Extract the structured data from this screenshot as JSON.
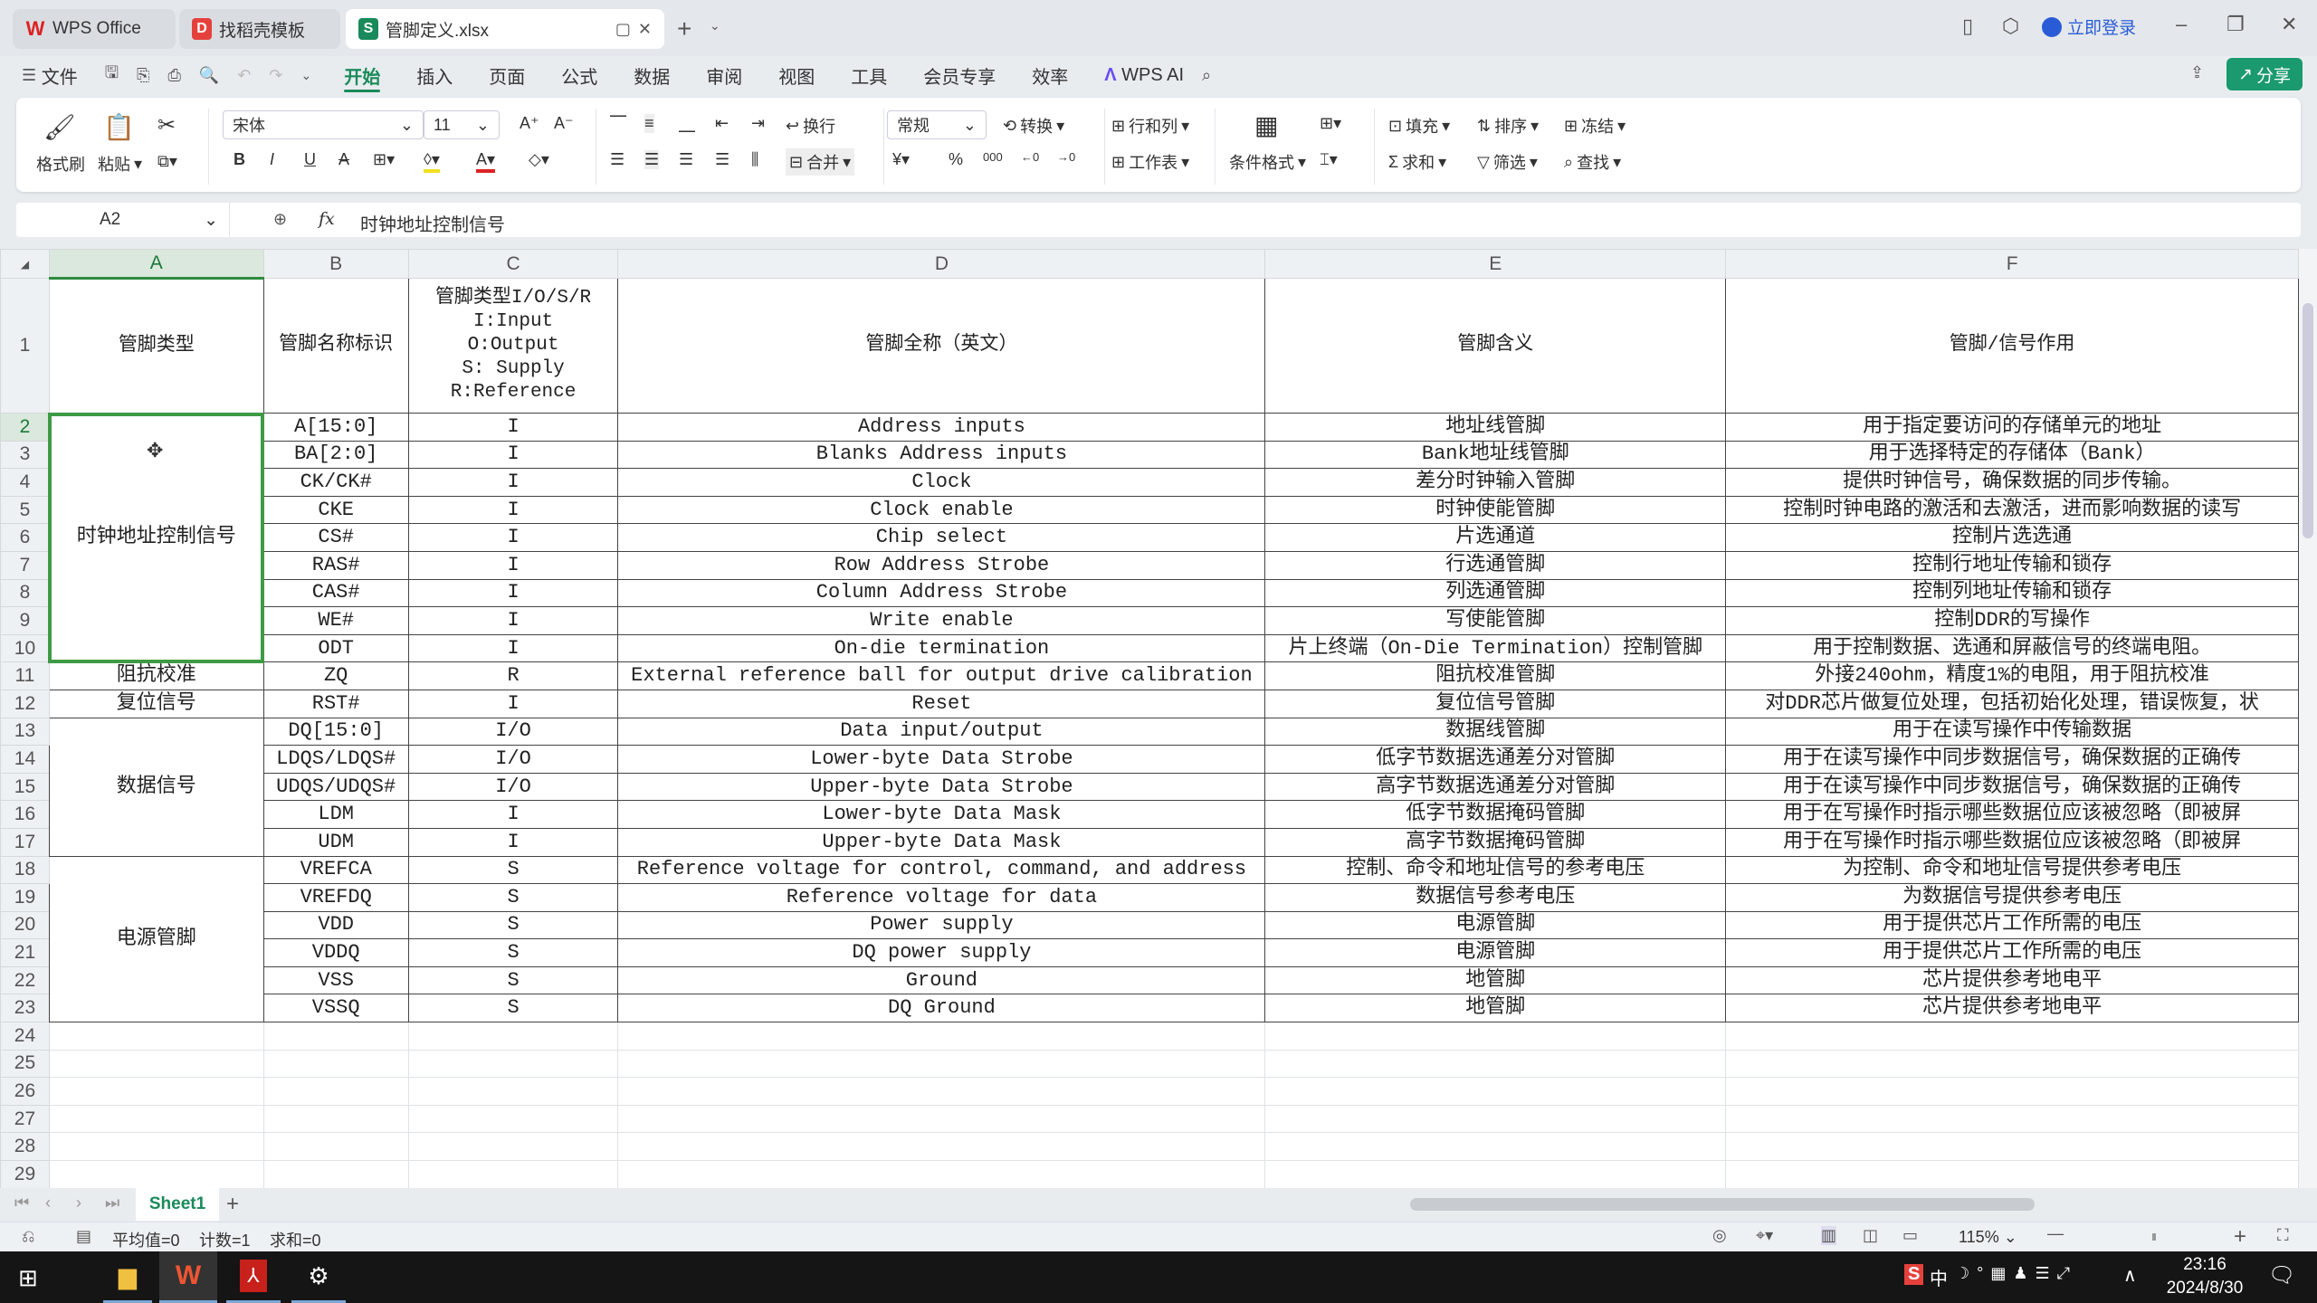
{
  "window": {
    "tabs": [
      {
        "label": "WPS Office",
        "icon": "wps-logo-icon"
      },
      {
        "label": "找稻壳模板",
        "icon": "docer-icon"
      },
      {
        "label": "管脚定义.xlsx",
        "icon": "spreadsheet-icon"
      }
    ],
    "login_label": "立即登录",
    "share_label": "分享"
  },
  "menu": {
    "file_label": "文件",
    "items": [
      "开始",
      "插入",
      "页面",
      "公式",
      "数据",
      "审阅",
      "视图",
      "工具",
      "会员专享",
      "效率"
    ],
    "active": "开始",
    "ai_label": "WPS AI"
  },
  "ribbon": {
    "format_painter": "格式刷",
    "paste": "粘贴",
    "font_name": "宋体",
    "font_size": "11",
    "wrap": "换行",
    "merge": "合并",
    "number_format": "常规",
    "convert": "转换",
    "row_col": "行和列",
    "worksheet": "工作表",
    "cond_format": "条件格式",
    "fill": "填充",
    "sort": "排序",
    "freeze": "冻结",
    "sum": "求和",
    "filter": "筛选",
    "find": "查找"
  },
  "formula_bar": {
    "cell_ref": "A2",
    "fx": "fx",
    "value": "时钟地址控制信号"
  },
  "sheet": {
    "columns": [
      "A",
      "B",
      "C",
      "D",
      "E",
      "F"
    ],
    "selected_column": "A",
    "selected_row": "2",
    "header": [
      "管脚类型",
      "管脚名称标识",
      "管脚类型I/O/S/R\nI:Input\nO:Output\nS: Supply\nR:Reference",
      "管脚全称（英文）",
      "管脚含义",
      "管脚/信号作用"
    ],
    "groups": [
      {
        "label": "时钟地址控制信号",
        "span": 9
      },
      {
        "label": "阻抗校准",
        "span": 1
      },
      {
        "label": "复位信号",
        "span": 1
      },
      {
        "label": "数据信号",
        "span": 5
      },
      {
        "label": "电源管脚",
        "span": 6
      }
    ],
    "rows": [
      [
        "A[15:0]",
        "I",
        "Address  inputs",
        "地址线管脚",
        "用于指定要访问的存储单元的地址"
      ],
      [
        "BA[2:0]",
        "I",
        "Blanks Address inputs",
        "Bank地址线管脚",
        "用于选择特定的存储体（Bank）"
      ],
      [
        "CK/CK#",
        "I",
        "Clock",
        "差分时钟输入管脚",
        "提供时钟信号，确保数据的同步传输。"
      ],
      [
        "CKE",
        "I",
        "Clock enable",
        "时钟使能管脚",
        "控制时钟电路的激活和去激活，进而影响数据的读写"
      ],
      [
        "CS#",
        "I",
        "Chip select",
        "片选通道",
        "控制片选选通"
      ],
      [
        "RAS#",
        "I",
        "Row Address Strobe",
        "行选通管脚",
        "控制行地址传输和锁存"
      ],
      [
        "CAS#",
        "I",
        "Column Address Strobe",
        "列选通管脚",
        "控制列地址传输和锁存"
      ],
      [
        "WE#",
        "I",
        "Write enable",
        "写使能管脚",
        "控制DDR的写操作"
      ],
      [
        "ODT",
        "I",
        "On-die termination",
        "片上终端（On-Die Termination）控制管脚",
        "用于控制数据、选通和屏蔽信号的终端电阻。"
      ],
      [
        "ZQ",
        "R",
        "External reference ball for output drive calibration",
        "阻抗校准管脚",
        "外接240ohm，精度1%的电阻，用于阻抗校准"
      ],
      [
        "RST#",
        "I",
        "Reset",
        "复位信号管脚",
        "对DDR芯片做复位处理，包括初始化处理，错误恢复，状"
      ],
      [
        "DQ[15:0]",
        "I/O",
        "Data input/output",
        "数据线管脚",
        "用于在读写操作中传输数据"
      ],
      [
        "LDQS/LDQS#",
        "I/O",
        "Lower-byte Data Strobe",
        "低字节数据选通差分对管脚",
        "用于在读写操作中同步数据信号，确保数据的正确传"
      ],
      [
        "UDQS/UDQS#",
        "I/O",
        "Upper-byte Data Strobe",
        "高字节数据选通差分对管脚",
        "用于在读写操作中同步数据信号，确保数据的正确传"
      ],
      [
        "LDM",
        "I",
        "Lower-byte Data Mask",
        "低字节数据掩码管脚",
        "用于在写操作时指示哪些数据位应该被忽略（即被屏"
      ],
      [
        "UDM",
        "I",
        "Upper-byte Data Mask",
        "高字节数据掩码管脚",
        "用于在写操作时指示哪些数据位应该被忽略（即被屏"
      ],
      [
        "VREFCA",
        "S",
        "Reference voltage for control, command, and address",
        "控制、命令和地址信号的参考电压",
        "为控制、命令和地址信号提供参考电压"
      ],
      [
        "VREFDQ",
        "S",
        "Reference voltage for data",
        "数据信号参考电压",
        "为数据信号提供参考电压"
      ],
      [
        "VDD",
        "S",
        "Power supply",
        "电源管脚",
        "用于提供芯片工作所需的电压"
      ],
      [
        "VDDQ",
        "S",
        "DQ power supply",
        "电源管脚",
        "用于提供芯片工作所需的电压"
      ],
      [
        "VSS",
        "S",
        "Ground",
        "地管脚",
        "芯片提供参考地电平"
      ],
      [
        "VSSQ",
        "S",
        "DQ Ground",
        "地管脚",
        "芯片提供参考地电平"
      ]
    ],
    "empty_rows": [
      "24",
      "25",
      "26",
      "27",
      "28",
      "29"
    ]
  },
  "sheet_tabs": {
    "active": "Sheet1"
  },
  "status": {
    "average": "平均值=0",
    "count": "计数=1",
    "sum": "求和=0",
    "zoom": "115%"
  },
  "taskbar": {
    "time": "23:16",
    "date": "2024/8/30",
    "ime": "中"
  },
  "colors": {
    "accent": "#1a8a5a",
    "selection": "#3f9a45"
  }
}
